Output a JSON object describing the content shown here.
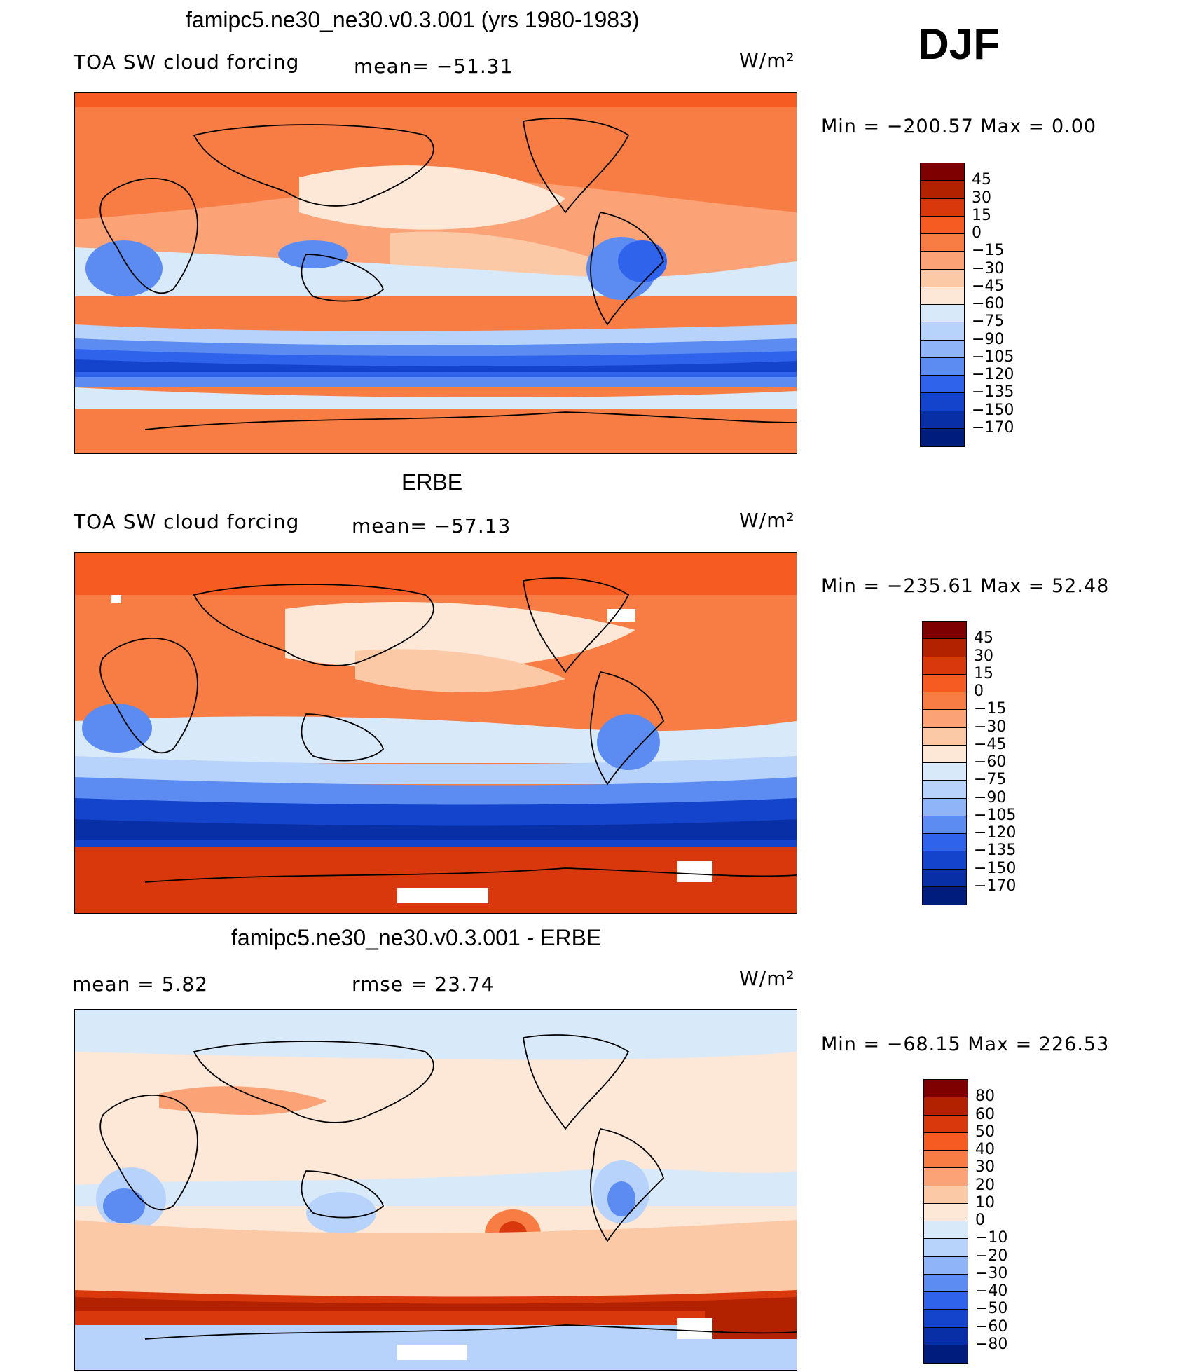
{
  "figure": {
    "season": "DJF"
  },
  "panels": [
    {
      "id": "model",
      "title": "famipc5.ne30_ne30.v0.3.001 (yrs 1980-1983)",
      "left_label": "TOA SW cloud forcing",
      "center_label": "mean= −51.31",
      "units": "W/m²",
      "min_max": "Min  =  −200.57  Max  =     0.00",
      "colorbar": {
        "colors": [
          "#7f0000",
          "#b22100",
          "#d8380b",
          "#f65b22",
          "#f87d45",
          "#fba376",
          "#fcc9a7",
          "#fde8d7",
          "#d8e9fa",
          "#b7d3fb",
          "#8fb5f8",
          "#5c8cf2",
          "#2f63eb",
          "#1544cc",
          "#092fa6",
          "#001c7d"
        ],
        "labels": [
          "45",
          "30",
          "15",
          "0",
          "−15",
          "−30",
          "−45",
          "−60",
          "−75",
          "−90",
          "−105",
          "−120",
          "−135",
          "−150",
          "−170"
        ]
      }
    },
    {
      "id": "obs",
      "title": "ERBE",
      "left_label": "TOA SW cloud forcing",
      "center_label": "mean= −57.13",
      "units": "W/m²",
      "min_max": "Min  =  −235.61  Max  =   52.48",
      "colorbar": {
        "colors": [
          "#7f0000",
          "#b22100",
          "#d8380b",
          "#f65b22",
          "#f87d45",
          "#fba376",
          "#fcc9a7",
          "#fde8d7",
          "#d8e9fa",
          "#b7d3fb",
          "#8fb5f8",
          "#5c8cf2",
          "#2f63eb",
          "#1544cc",
          "#092fa6",
          "#001c7d"
        ],
        "labels": [
          "45",
          "30",
          "15",
          "0",
          "−15",
          "−30",
          "−45",
          "−60",
          "−75",
          "−90",
          "−105",
          "−120",
          "−135",
          "−150",
          "−170"
        ]
      }
    },
    {
      "id": "diff",
      "title": "famipc5.ne30_ne30.v0.3.001 - ERBE",
      "left_label": "mean  =      5.82",
      "center_label": "rmse  =    23.74",
      "units": "W/m²",
      "min_max": "Min  =  −68.15  Max  =  226.53",
      "colorbar": {
        "colors": [
          "#7f0000",
          "#b22100",
          "#d8380b",
          "#f65b22",
          "#f87d45",
          "#fba376",
          "#fcc9a7",
          "#fde8d7",
          "#d8e9fa",
          "#b7d3fb",
          "#8fb5f8",
          "#5c8cf2",
          "#2f63eb",
          "#1544cc",
          "#092fa6",
          "#001c7d"
        ],
        "labels": [
          "80",
          "60",
          "50",
          "40",
          "30",
          "20",
          "10",
          "0",
          "−10",
          "−20",
          "−30",
          "−40",
          "−50",
          "−60",
          "−80"
        ]
      }
    }
  ]
}
